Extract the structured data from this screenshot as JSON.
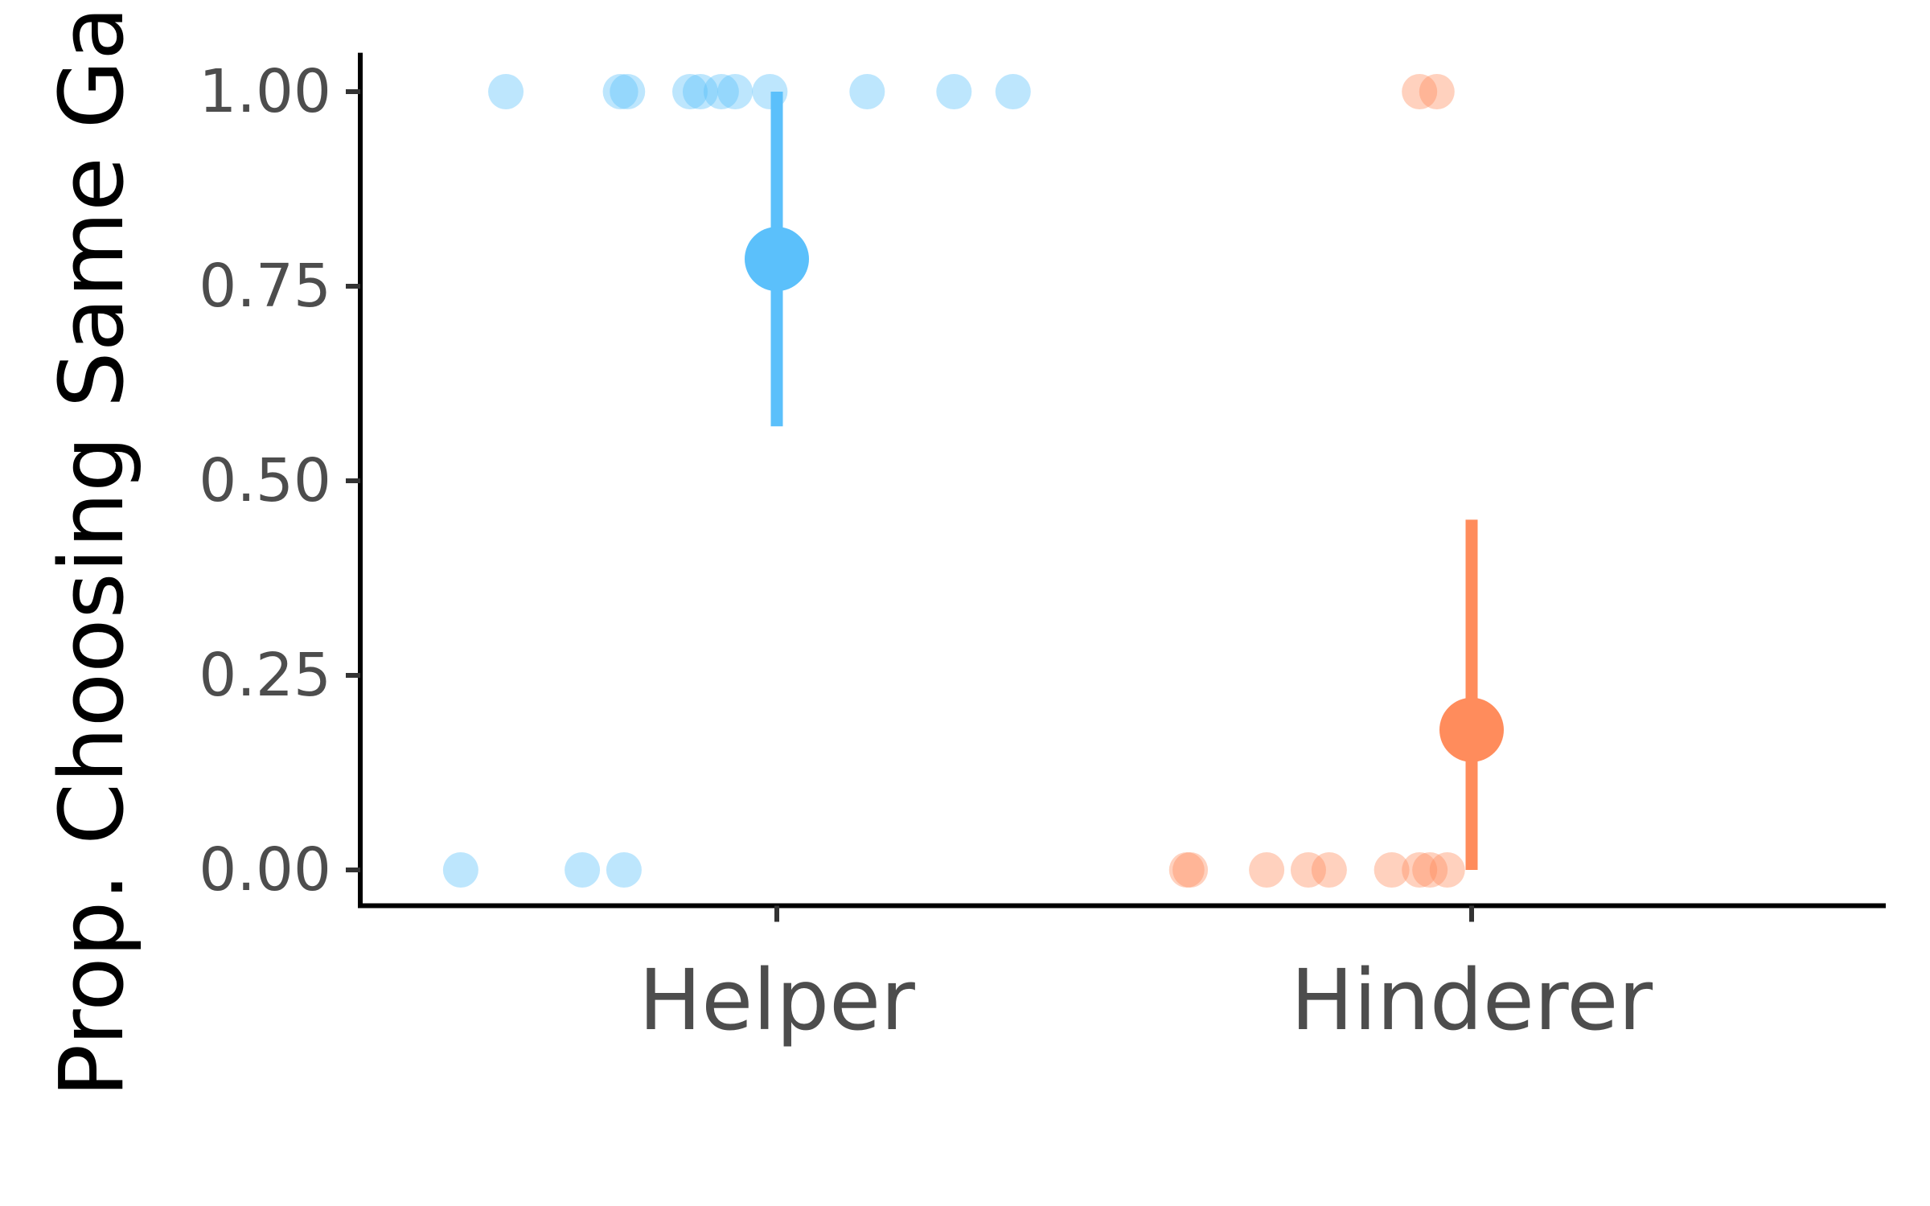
{
  "chart_data": {
    "type": "scatter",
    "title": "",
    "xlabel": "",
    "ylabel": "Prop. Choosing Same Ga",
    "categories": [
      "Helper",
      "Hinderer"
    ],
    "ylim": [
      -0.046,
      1.05
    ],
    "yticks": [
      "0.00",
      "0.25",
      "0.50",
      "0.75",
      "1.00"
    ],
    "yticks_values": [
      0,
      0.25,
      0.5,
      0.75,
      1
    ],
    "grid": false,
    "legend": "none",
    "colors": {
      "Helper": "#5bc0fb",
      "Hinderer": "#ff8c5c"
    },
    "series": [
      {
        "category": "Helper",
        "summary": {
          "mean": 0.785,
          "ci_low": 0.57,
          "ci_high": 1.0
        },
        "points": [
          {
            "x": 0.61,
            "y": 1
          },
          {
            "x": 0.775,
            "y": 1
          },
          {
            "x": 0.785,
            "y": 1
          },
          {
            "x": 0.875,
            "y": 1
          },
          {
            "x": 0.89,
            "y": 1
          },
          {
            "x": 0.92,
            "y": 1
          },
          {
            "x": 0.94,
            "y": 1
          },
          {
            "x": 0.99,
            "y": 1
          },
          {
            "x": 1.13,
            "y": 1
          },
          {
            "x": 1.255,
            "y": 1
          },
          {
            "x": 1.34,
            "y": 1
          },
          {
            "x": 0.545,
            "y": 0
          },
          {
            "x": 0.72,
            "y": 0
          },
          {
            "x": 0.78,
            "y": 0
          }
        ]
      },
      {
        "category": "Hinderer",
        "summary": {
          "mean": 0.18,
          "ci_low": 0.0,
          "ci_high": 0.45
        },
        "points": [
          {
            "x": 1.925,
            "y": 1
          },
          {
            "x": 1.95,
            "y": 1
          },
          {
            "x": 1.59,
            "y": 0
          },
          {
            "x": 1.595,
            "y": 0
          },
          {
            "x": 1.705,
            "y": 0
          },
          {
            "x": 1.765,
            "y": 0
          },
          {
            "x": 1.795,
            "y": 0
          },
          {
            "x": 1.885,
            "y": 0
          },
          {
            "x": 1.925,
            "y": 0
          },
          {
            "x": 1.94,
            "y": 0
          },
          {
            "x": 1.965,
            "y": 0
          }
        ]
      }
    ]
  }
}
